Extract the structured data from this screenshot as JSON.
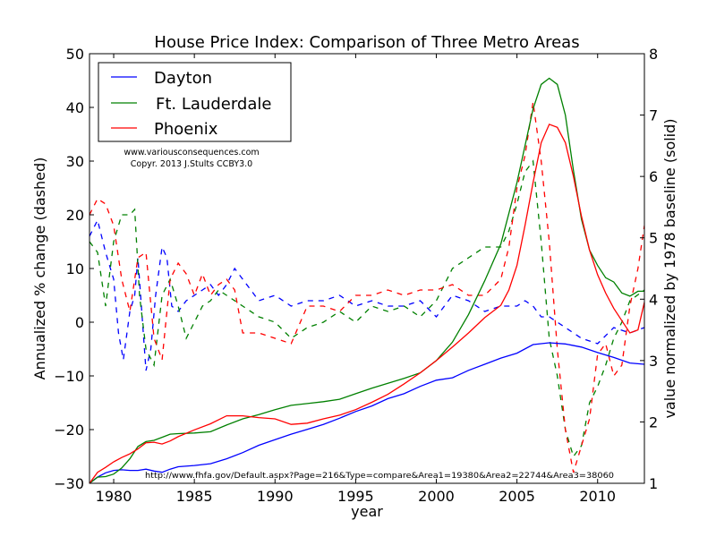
{
  "chart_data": {
    "type": "line",
    "title": "House Price Index: Comparison of Three Metro Areas",
    "xlabel": "year",
    "ylabel_left": "Annualized % change (dashed)",
    "ylabel_right": "value normalized by 1978 baseline (solid)",
    "xlim": [
      1978.5,
      1978.5
    ],
    "xlim_actual": [
      1978.5,
      2012.9
    ],
    "ylim_left": [
      -30,
      50
    ],
    "ylim_right": [
      1,
      8
    ],
    "xticks": [
      1980,
      1985,
      1990,
      1995,
      2000,
      2005,
      2010
    ],
    "yticks_left": [
      -30,
      -20,
      -10,
      0,
      10,
      20,
      30,
      40,
      50
    ],
    "yticks_right": [
      1,
      2,
      3,
      4,
      5,
      6,
      7,
      8
    ],
    "grid": false,
    "legend": {
      "placement": "top-left",
      "entries": [
        "Dayton",
        "Ft. Lauderdale",
        "Phoenix"
      ]
    },
    "annotations": {
      "credit_line1": "www.variousconsequences.com",
      "credit_line2": "Copyr. 2013 J.Stults CCBY3.0",
      "source_url": "http://www.fhfa.gov/Default.aspx?Page=216&Type=compare&Area1=19380&Area2=22744&Area3=38060"
    },
    "series": [
      {
        "name": "Dayton",
        "color": "#0000ff",
        "normalized_solid": {
          "x": [
            1978.5,
            1979,
            1979.5,
            1980,
            1980.5,
            1981,
            1981.5,
            1982,
            1982.5,
            1983,
            1983.5,
            1984,
            1985,
            1986,
            1987,
            1988,
            1989,
            1990,
            1991,
            1992,
            1993,
            1994,
            1995,
            1996,
            1997,
            1998,
            1999,
            2000,
            2001,
            2002,
            2003,
            2004,
            2005,
            2006,
            2007,
            2008,
            2009,
            2010,
            2011,
            2012,
            2012.9
          ],
          "y": [
            1.0,
            1.1,
            1.17,
            1.21,
            1.22,
            1.21,
            1.21,
            1.23,
            1.2,
            1.18,
            1.23,
            1.27,
            1.29,
            1.32,
            1.4,
            1.5,
            1.62,
            1.71,
            1.8,
            1.88,
            1.96,
            2.06,
            2.17,
            2.26,
            2.38,
            2.46,
            2.58,
            2.68,
            2.72,
            2.84,
            2.94,
            3.04,
            3.12,
            3.26,
            3.29,
            3.27,
            3.22,
            3.13,
            3.05,
            2.96,
            2.94
          ]
        },
        "annualized_dashed": {
          "x": [
            1978.5,
            1979,
            1979.5,
            1980,
            1980.3,
            1980.6,
            1981,
            1981.3,
            1981.5,
            1982,
            1982.3,
            1982.6,
            1983,
            1983.3,
            1983.6,
            1984,
            1984.5,
            1985,
            1985.5,
            1986,
            1986.5,
            1987,
            1987.5,
            1988,
            1989,
            1990,
            1991,
            1992,
            1993,
            1994,
            1995,
            1996,
            1997,
            1998,
            1999,
            2000,
            2001,
            2002,
            2003,
            2004,
            2005,
            2005.5,
            2006,
            2006.5,
            2007,
            2008,
            2009,
            2010,
            2011,
            2012,
            2012.9
          ],
          "y": [
            16,
            19,
            13,
            8,
            -2,
            -7,
            2,
            5,
            12,
            -9,
            -5,
            5,
            14,
            12,
            3,
            2,
            4,
            5,
            6,
            7,
            5,
            7,
            10,
            8,
            4,
            5,
            3,
            4,
            4,
            5,
            3,
            4,
            3,
            3,
            4,
            1,
            5,
            4,
            2,
            3,
            3,
            4,
            3,
            1,
            1,
            -1,
            -3,
            -4,
            -1,
            -2,
            -1
          ]
        }
      },
      {
        "name": "Ft. Lauderdale",
        "color": "#008000",
        "normalized_solid": {
          "x": [
            1978.5,
            1979,
            1979.5,
            1980,
            1980.5,
            1981,
            1981.5,
            1982,
            1982.5,
            1983,
            1983.5,
            1984,
            1985,
            1986,
            1987,
            1988,
            1989,
            1990,
            1991,
            1992,
            1993,
            1994,
            1995,
            1996,
            1997,
            1998,
            1999,
            2000,
            2001,
            2002,
            2003,
            2004,
            2004.5,
            2005,
            2005.5,
            2006,
            2006.5,
            2007,
            2007.5,
            2008,
            2008.5,
            2009,
            2009.5,
            2010,
            2010.5,
            2011,
            2011.5,
            2012,
            2012.5,
            2012.9
          ],
          "y": [
            1.0,
            1.1,
            1.11,
            1.15,
            1.25,
            1.4,
            1.6,
            1.68,
            1.7,
            1.75,
            1.8,
            1.81,
            1.82,
            1.84,
            1.95,
            2.05,
            2.12,
            2.2,
            2.27,
            2.3,
            2.33,
            2.37,
            2.46,
            2.55,
            2.63,
            2.71,
            2.8,
            3.0,
            3.3,
            3.75,
            4.3,
            4.9,
            5.4,
            5.9,
            6.5,
            7.1,
            7.5,
            7.6,
            7.5,
            7.0,
            6.1,
            5.3,
            4.8,
            4.55,
            4.35,
            4.28,
            4.1,
            4.05,
            4.13,
            4.13
          ]
        },
        "annualized_dashed": {
          "x": [
            1978.5,
            1979,
            1979.5,
            1980,
            1980.5,
            1981,
            1981.3,
            1981.6,
            1982,
            1982.5,
            1983,
            1983.5,
            1984,
            1984.5,
            1985,
            1985.5,
            1986,
            1986.5,
            1987,
            1988,
            1989,
            1990,
            1991,
            1992,
            1993,
            1994,
            1995,
            1996,
            1997,
            1998,
            1999,
            2000,
            2001,
            2002,
            2003,
            2004,
            2004.5,
            2005,
            2005.5,
            2006,
            2006.5,
            2007,
            2007.5,
            2008,
            2008.5,
            2009,
            2009.5,
            2010,
            2010.5,
            2011,
            2011.5,
            2012,
            2012.9
          ],
          "y": [
            15,
            13,
            3,
            15,
            20,
            20,
            21,
            5,
            -5,
            -8,
            5,
            8,
            3,
            -3,
            0,
            3,
            4,
            6,
            5,
            3,
            1,
            0,
            -3,
            -1,
            0,
            2,
            0,
            3,
            2,
            3,
            1,
            4,
            10,
            12,
            14,
            14,
            17,
            22,
            28,
            30,
            15,
            -3,
            -10,
            -20,
            -25,
            -23,
            -15,
            -12,
            -8,
            -3,
            0,
            4,
            6
          ]
        }
      },
      {
        "name": "Phoenix",
        "color": "#ff0000",
        "normalized_solid": {
          "x": [
            1978.5,
            1979,
            1979.5,
            1980,
            1980.5,
            1981,
            1981.5,
            1982,
            1982.5,
            1983,
            1983.5,
            1984,
            1985,
            1986,
            1987,
            1988,
            1989,
            1990,
            1991,
            1992,
            1993,
            1994,
            1995,
            1996,
            1997,
            1998,
            1999,
            2000,
            2001,
            2002,
            2003,
            2004,
            2004.5,
            2005,
            2005.5,
            2006,
            2006.5,
            2007,
            2007.5,
            2008,
            2008.5,
            2009,
            2009.5,
            2010,
            2010.5,
            2011,
            2011.5,
            2012,
            2012.5,
            2012.9
          ],
          "y": [
            1.0,
            1.18,
            1.26,
            1.35,
            1.42,
            1.48,
            1.56,
            1.66,
            1.67,
            1.64,
            1.69,
            1.76,
            1.87,
            1.97,
            2.1,
            2.1,
            2.07,
            2.05,
            1.96,
            1.98,
            2.05,
            2.11,
            2.2,
            2.32,
            2.45,
            2.62,
            2.8,
            3.0,
            3.22,
            3.45,
            3.7,
            3.9,
            4.15,
            4.55,
            5.2,
            5.9,
            6.55,
            6.85,
            6.8,
            6.55,
            6.0,
            5.35,
            4.8,
            4.4,
            4.1,
            3.85,
            3.65,
            3.45,
            3.5,
            3.95
          ]
        },
        "annualized_dashed": {
          "x": [
            1978.5,
            1979,
            1979.5,
            1980,
            1980.5,
            1981,
            1981.5,
            1982,
            1982.5,
            1983,
            1983.5,
            1984,
            1984.5,
            1985,
            1985.5,
            1986,
            1986.5,
            1987,
            1987.5,
            1988,
            1989,
            1990,
            1991,
            1992,
            1993,
            1994,
            1995,
            1996,
            1997,
            1998,
            1999,
            2000,
            2001,
            2002,
            2003,
            2004,
            2004.5,
            2005,
            2005.5,
            2006,
            2006.5,
            2007,
            2007.5,
            2008,
            2008.5,
            2009,
            2009.5,
            2010,
            2010.5,
            2011,
            2011.5,
            2012,
            2012.5,
            2012.9
          ],
          "y": [
            20,
            23,
            22,
            18,
            8,
            2,
            12,
            13,
            -3,
            -7,
            8,
            11,
            9,
            5,
            9,
            5,
            7,
            8,
            6,
            -2,
            -2,
            -3,
            -4,
            3,
            3,
            2,
            5,
            5,
            6,
            5,
            6,
            6,
            7,
            5,
            5,
            8,
            14,
            25,
            31,
            41,
            30,
            15,
            -5,
            -20,
            -28,
            -23,
            -18,
            -6,
            -4,
            -10,
            -8,
            3,
            10,
            18
          ]
        }
      }
    ]
  }
}
